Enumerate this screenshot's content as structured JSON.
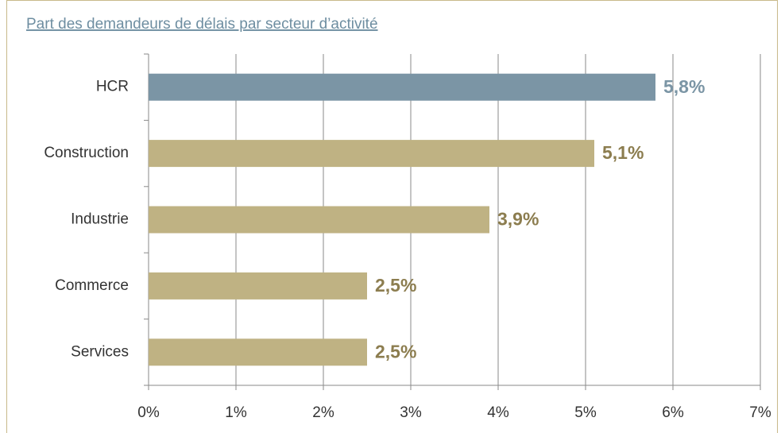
{
  "chart_data": {
    "type": "hbar",
    "title": "Part des demandeurs de délais par secteur d’activité",
    "categories": [
      "HCR",
      "Construction",
      "Industrie",
      "Commerce",
      "Services"
    ],
    "values": [
      5.8,
      5.1,
      3.9,
      2.5,
      2.5
    ],
    "value_labels": [
      "5,8%",
      "5,1%",
      "3,9%",
      "2,5%",
      "2,5%"
    ],
    "colors": [
      "#7b95a5",
      "#bfb283",
      "#bfb283",
      "#bfb283",
      "#bfb283"
    ],
    "label_colors": [
      "#7b95a5",
      "#8c7d4f",
      "#8c7d4f",
      "#8c7d4f",
      "#8c7d4f"
    ],
    "xlim": [
      0,
      7
    ],
    "xticks": [
      {
        "value": 0,
        "label": "0%"
      },
      {
        "value": 1,
        "label": "1%"
      },
      {
        "value": 2,
        "label": "2%"
      },
      {
        "value": 3,
        "label": "3%"
      },
      {
        "value": 4,
        "label": "4%"
      },
      {
        "value": 5,
        "label": "5%"
      },
      {
        "value": 6,
        "label": "6%"
      },
      {
        "value": 7,
        "label": "7%"
      }
    ],
    "grid": true
  }
}
